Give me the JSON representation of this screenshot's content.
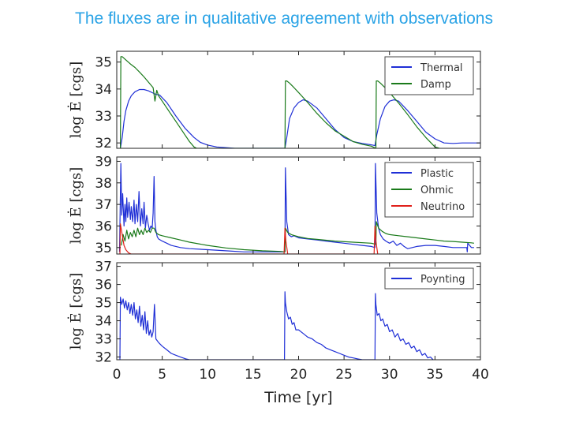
{
  "slide": {
    "title": "The fluxes are in qualitative agreement with observations"
  },
  "colors": {
    "title": "#2aa3e6",
    "blue": "#1f2fd6",
    "green": "#1a7a1a",
    "red": "#e0201a"
  },
  "chart_data": [
    {
      "type": "line",
      "panel": "top",
      "ylabel": "log Ė [cgs]",
      "ylim": [
        31.8,
        35.4
      ],
      "yticks": [
        35,
        34,
        33,
        32
      ],
      "xlim": [
        0,
        40
      ],
      "legend": [
        "Thermal",
        "Damp"
      ],
      "legend_position": "top-right",
      "series": [
        {
          "name": "Thermal",
          "color": "#1f2fd6",
          "x": [
            0.4,
            0.6,
            0.8,
            1.0,
            1.3,
            1.6,
            2.0,
            2.5,
            3.0,
            3.5,
            4.0,
            4.3,
            4.7,
            5.5,
            6.5,
            7.5,
            8.5,
            9.2,
            10.0,
            11.0,
            13.0,
            15.0,
            17.0,
            18.3,
            18.5,
            18.7,
            19.0,
            19.5,
            20.0,
            20.5,
            21.0,
            22.0,
            23.0,
            24.0,
            25.0,
            26.0,
            27.0,
            28.0,
            28.4,
            28.6,
            29.0,
            29.5,
            30.0,
            30.5,
            31.0,
            32.0,
            33.0,
            34.0,
            35.0,
            36.0,
            37.0,
            38.0,
            39.0,
            40.0
          ],
          "values": [
            31.8,
            32.2,
            32.8,
            33.2,
            33.55,
            33.75,
            33.9,
            33.98,
            33.98,
            33.93,
            33.85,
            33.8,
            33.78,
            33.5,
            33.0,
            32.55,
            32.2,
            32.02,
            31.92,
            31.85,
            31.8,
            31.8,
            31.8,
            31.8,
            31.8,
            32.2,
            32.9,
            33.3,
            33.5,
            33.6,
            33.55,
            33.3,
            32.9,
            32.5,
            32.2,
            32.05,
            31.98,
            31.93,
            31.9,
            32.3,
            32.9,
            33.35,
            33.55,
            33.6,
            33.55,
            33.2,
            32.8,
            32.4,
            32.15,
            32.0,
            31.98,
            32.0,
            32.0,
            32.0
          ]
        },
        {
          "name": "Damp",
          "color": "#1a7a1a",
          "x": [
            0.4,
            0.45,
            0.6,
            1.0,
            1.5,
            2.0,
            2.5,
            3.0,
            3.5,
            4.0,
            4.2,
            4.4,
            4.6,
            5.0,
            5.5,
            6.0,
            6.5,
            7.0,
            7.5,
            8.0,
            8.5,
            8.8,
            18.5,
            18.55,
            18.7,
            19.0,
            19.5,
            20.0,
            21.0,
            22.0,
            23.0,
            24.0,
            25.0,
            26.0,
            27.0,
            28.0,
            28.5,
            28.55,
            28.7,
            29.0,
            29.5,
            30.0,
            31.0,
            32.0,
            33.0,
            34.0,
            35.0,
            35.5
          ],
          "values": [
            31.8,
            35.2,
            35.2,
            35.08,
            34.93,
            34.8,
            34.63,
            34.45,
            34.25,
            34.05,
            33.55,
            33.95,
            33.75,
            33.55,
            33.3,
            33.05,
            32.8,
            32.55,
            32.3,
            32.05,
            31.85,
            31.8,
            31.8,
            34.3,
            34.3,
            34.22,
            34.05,
            33.87,
            33.5,
            33.1,
            32.75,
            32.45,
            32.25,
            32.05,
            31.95,
            31.88,
            31.8,
            34.3,
            34.3,
            34.22,
            34.05,
            33.87,
            33.48,
            33.05,
            32.6,
            32.2,
            31.85,
            31.8
          ]
        }
      ]
    },
    {
      "type": "line",
      "panel": "middle",
      "ylabel": "log Ė [cgs]",
      "ylim": [
        34.7,
        39.2
      ],
      "yticks": [
        39,
        38,
        37,
        36,
        35
      ],
      "xlim": [
        0,
        40
      ],
      "legend": [
        "Plastic",
        "Ohmic",
        "Neutrino"
      ],
      "legend_position": "top-right",
      "series": [
        {
          "name": "Plastic",
          "color": "#1f2fd6",
          "x": [
            0.3,
            0.45,
            0.55,
            0.65,
            0.8,
            0.9,
            1.0,
            1.1,
            1.2,
            1.35,
            1.5,
            1.6,
            1.75,
            1.9,
            2.0,
            2.15,
            2.3,
            2.45,
            2.6,
            2.75,
            2.9,
            3.0,
            3.15,
            3.3,
            3.45,
            3.6,
            3.75,
            3.9,
            4.0,
            4.1,
            4.2,
            4.3,
            4.45,
            4.6,
            5.0,
            5.5,
            6.0,
            7.0,
            8.0,
            10.0,
            12.0,
            14.0,
            16.0,
            18.0,
            18.5,
            18.55,
            18.7,
            18.9,
            19.2,
            19.5,
            20.0,
            21.0,
            22.0,
            23.0,
            24.0,
            25.0,
            26.0,
            27.0,
            28.0,
            28.4,
            28.45,
            28.6,
            28.8,
            29.0,
            29.3,
            29.6,
            30.0,
            30.4,
            30.8,
            31.2,
            31.6,
            32.0,
            32.5,
            33.0,
            34.0,
            35.0,
            36.0,
            37.0,
            38.0,
            38.5,
            38.55,
            38.6,
            39.0,
            39.3
          ],
          "values": [
            34.8,
            38.9,
            36.5,
            37.5,
            36.0,
            37.0,
            36.2,
            37.3,
            36.4,
            37.1,
            36.3,
            36.9,
            36.2,
            37.2,
            36.1,
            37.0,
            36.2,
            37.6,
            36.0,
            36.8,
            36.1,
            37.1,
            35.9,
            36.5,
            36.1,
            35.8,
            36.0,
            35.9,
            36.6,
            38.3,
            36.2,
            35.8,
            35.5,
            35.4,
            35.3,
            35.2,
            35.1,
            35.0,
            34.95,
            34.9,
            34.85,
            34.8,
            34.8,
            34.8,
            34.8,
            38.7,
            36.2,
            35.6,
            35.5,
            35.55,
            35.45,
            35.4,
            35.35,
            35.3,
            35.25,
            35.2,
            35.15,
            35.1,
            35.05,
            35.0,
            38.9,
            36.6,
            35.9,
            35.6,
            35.4,
            35.3,
            35.2,
            35.3,
            35.1,
            35.2,
            35.05,
            34.95,
            35.0,
            35.05,
            35.1,
            35.1,
            35.05,
            35.0,
            35.0,
            35.0,
            34.8,
            35.2,
            35.0,
            35.0
          ]
        },
        {
          "name": "Ohmic",
          "color": "#1a7a1a",
          "x": [
            0.5,
            0.7,
            0.9,
            1.1,
            1.3,
            1.5,
            1.7,
            1.9,
            2.1,
            2.3,
            2.5,
            2.7,
            2.9,
            3.1,
            3.3,
            3.5,
            3.7,
            3.9,
            4.1,
            4.3,
            4.6,
            5.0,
            6.0,
            7.0,
            8.0,
            10.0,
            12.0,
            14.0,
            16.0,
            18.0,
            18.5,
            18.55,
            18.8,
            19.2,
            19.6,
            20.0,
            21.0,
            22.0,
            24.0,
            26.0,
            28.0,
            28.5,
            28.55,
            28.8,
            29.2,
            29.6,
            30.0,
            31.0,
            32.0,
            33.0,
            34.0,
            35.0,
            36.0,
            37.0,
            38.0,
            39.0,
            39.3
          ],
          "values": [
            35.1,
            35.6,
            35.3,
            35.8,
            35.4,
            35.7,
            35.5,
            35.8,
            35.5,
            35.9,
            35.6,
            35.8,
            35.6,
            35.9,
            35.7,
            35.8,
            35.7,
            35.9,
            35.9,
            35.7,
            35.6,
            35.55,
            35.45,
            35.35,
            35.25,
            35.1,
            34.98,
            34.9,
            34.85,
            34.82,
            34.8,
            35.9,
            35.7,
            35.6,
            35.55,
            35.5,
            35.42,
            35.38,
            35.3,
            35.25,
            35.2,
            35.15,
            36.2,
            35.9,
            35.75,
            35.65,
            35.6,
            35.55,
            35.5,
            35.45,
            35.4,
            35.35,
            35.3,
            35.28,
            35.25,
            35.22,
            35.2
          ]
        },
        {
          "name": "Neutrino",
          "color": "#e0201a",
          "x": [
            0.35,
            0.4,
            0.6,
            0.8,
            1.0,
            1.3,
            1.6,
            18.4,
            18.5,
            18.6,
            18.8,
            28.3,
            28.4,
            28.5,
            28.7
          ],
          "values": [
            34.7,
            36.1,
            35.6,
            35.1,
            34.9,
            34.75,
            34.7,
            34.7,
            35.9,
            35.3,
            34.7,
            34.7,
            36.0,
            35.3,
            34.7
          ]
        }
      ]
    },
    {
      "type": "line",
      "panel": "bottom",
      "ylabel": "log Ė [cgs]",
      "ylim": [
        31.85,
        37.2
      ],
      "yticks": [
        37,
        36,
        35,
        34,
        33,
        32
      ],
      "xlim": [
        0,
        40
      ],
      "xticks": [
        0,
        5,
        10,
        15,
        20,
        25,
        30,
        35,
        40
      ],
      "xlabel": "Time [yr]",
      "legend": [
        "Poynting"
      ],
      "legend_position": "top-right",
      "series": [
        {
          "name": "Poynting",
          "color": "#1f2fd6",
          "x": [
            0.35,
            0.4,
            0.55,
            0.7,
            0.85,
            1.0,
            1.15,
            1.3,
            1.45,
            1.6,
            1.75,
            1.9,
            2.05,
            2.2,
            2.35,
            2.5,
            2.65,
            2.8,
            2.95,
            3.1,
            3.25,
            3.4,
            3.55,
            3.7,
            3.85,
            4.0,
            4.15,
            4.3,
            4.45,
            4.6,
            5.0,
            5.5,
            6.0,
            6.5,
            7.0,
            7.6,
            8.0,
            18.45,
            18.5,
            18.55,
            18.7,
            18.9,
            19.1,
            19.3,
            19.5,
            19.7,
            20.0,
            20.5,
            21.0,
            21.5,
            22.0,
            22.5,
            23.0,
            23.5,
            24.0,
            24.5,
            25.0,
            25.5,
            26.0,
            26.5,
            27.0,
            28.4,
            28.45,
            28.5,
            28.65,
            28.85,
            29.05,
            29.25,
            29.5,
            29.75,
            30.0,
            30.3,
            30.6,
            30.9,
            31.2,
            31.5,
            31.8,
            32.1,
            32.4,
            32.7,
            33.0,
            33.3,
            33.6,
            33.9,
            34.2,
            34.5,
            34.8
          ],
          "values": [
            31.85,
            35.3,
            34.9,
            35.2,
            34.7,
            35.1,
            34.6,
            35.0,
            34.4,
            34.9,
            34.3,
            35.0,
            34.1,
            34.6,
            33.9,
            34.8,
            33.7,
            34.3,
            33.5,
            34.5,
            33.3,
            34.0,
            33.2,
            33.5,
            33.1,
            33.4,
            34.9,
            33.0,
            32.9,
            32.8,
            32.6,
            32.4,
            32.2,
            32.1,
            32.0,
            31.9,
            31.85,
            31.85,
            35.6,
            35.0,
            34.5,
            34.1,
            34.2,
            33.8,
            33.9,
            33.5,
            33.5,
            33.3,
            33.1,
            33.0,
            32.8,
            32.7,
            32.5,
            32.4,
            32.3,
            32.2,
            32.1,
            32.0,
            31.95,
            31.9,
            31.85,
            31.85,
            35.5,
            34.9,
            34.3,
            34.4,
            34.0,
            34.1,
            33.7,
            33.8,
            33.4,
            33.5,
            33.1,
            33.3,
            32.9,
            33.0,
            32.7,
            32.8,
            32.5,
            32.6,
            32.3,
            32.4,
            32.1,
            32.2,
            31.95,
            32.0,
            31.85
          ]
        }
      ]
    }
  ]
}
